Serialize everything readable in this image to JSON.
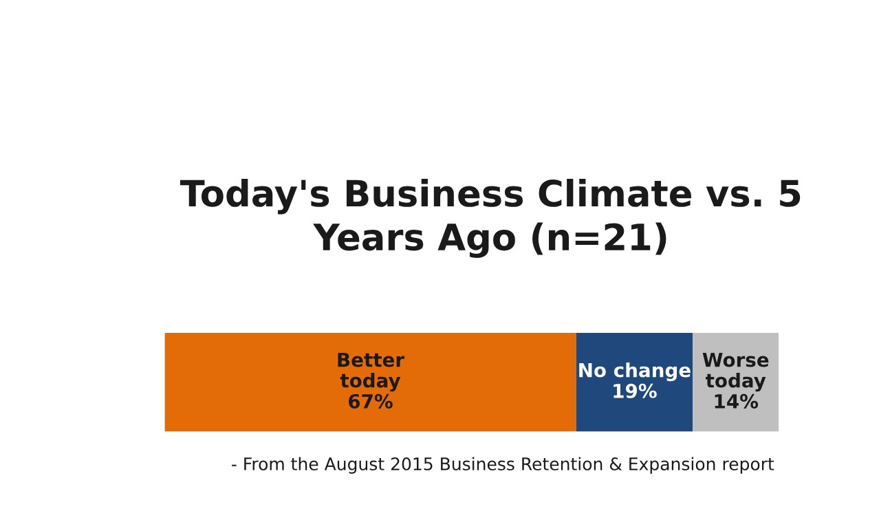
{
  "chart_data": {
    "type": "bar",
    "orientation": "horizontal",
    "stacked": true,
    "title": "Today's Business Climate vs. 5\nYears Ago (n=21)",
    "categories": [
      null
    ],
    "series": [
      {
        "name": "Better\ntoday",
        "color": "#e36c09",
        "values": [
          67
        ],
        "value_labels": [
          "67%"
        ]
      },
      {
        "name": "No change",
        "color": "#1f497d",
        "values": [
          19
        ],
        "value_labels": [
          "19%"
        ]
      },
      {
        "name": "Worse\ntoday",
        "color": "#bfbfbf",
        "values": [
          14
        ],
        "value_labels": [
          "14%"
        ]
      }
    ],
    "xlim": [
      0,
      100
    ],
    "annotations": [
      "- From the August 2015 Business Retention & Expansion report"
    ]
  }
}
